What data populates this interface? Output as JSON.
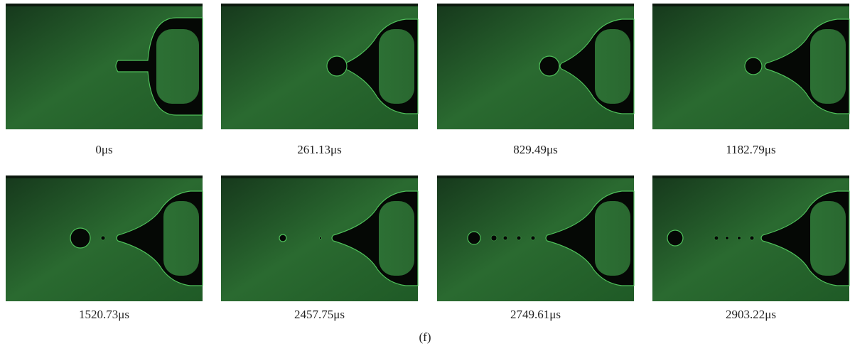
{
  "figure": {
    "panels": [
      {
        "caption": "0μs"
      },
      {
        "caption": "261.13μs"
      },
      {
        "caption": "829.49μs"
      },
      {
        "caption": "1182.79μs"
      },
      {
        "caption": "1520.73μs"
      },
      {
        "caption": "2457.75μs"
      },
      {
        "caption": "2749.61μs"
      },
      {
        "caption": "2903.22μs"
      }
    ],
    "label": "(f)"
  }
}
